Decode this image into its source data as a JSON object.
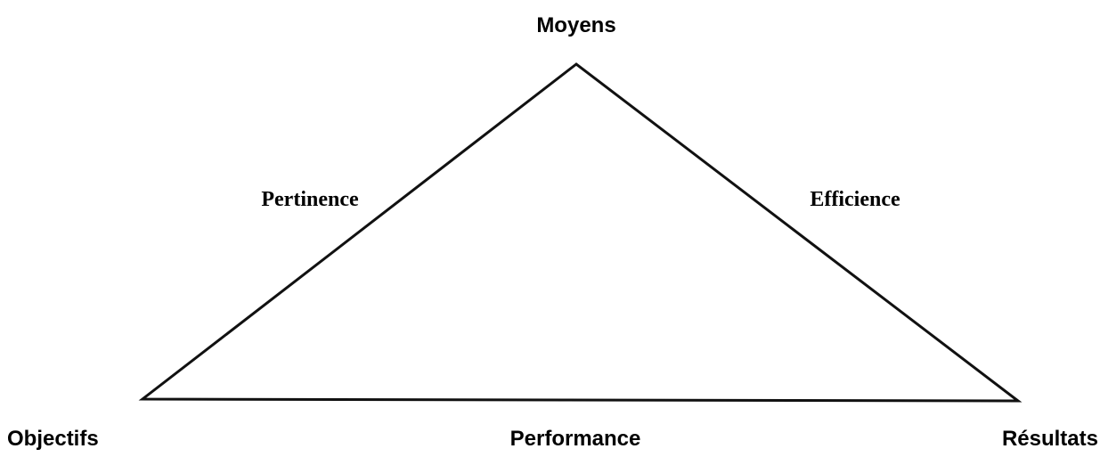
{
  "nodes": [
    {
      "label": "Moyens"
    },
    {
      "label": "Objectifs"
    },
    {
      "label": "Résultats"
    }
  ],
  "edges": [
    {
      "label": "Pertinence"
    },
    {
      "label": "Efficience"
    },
    {
      "label": "Performance"
    }
  ]
}
